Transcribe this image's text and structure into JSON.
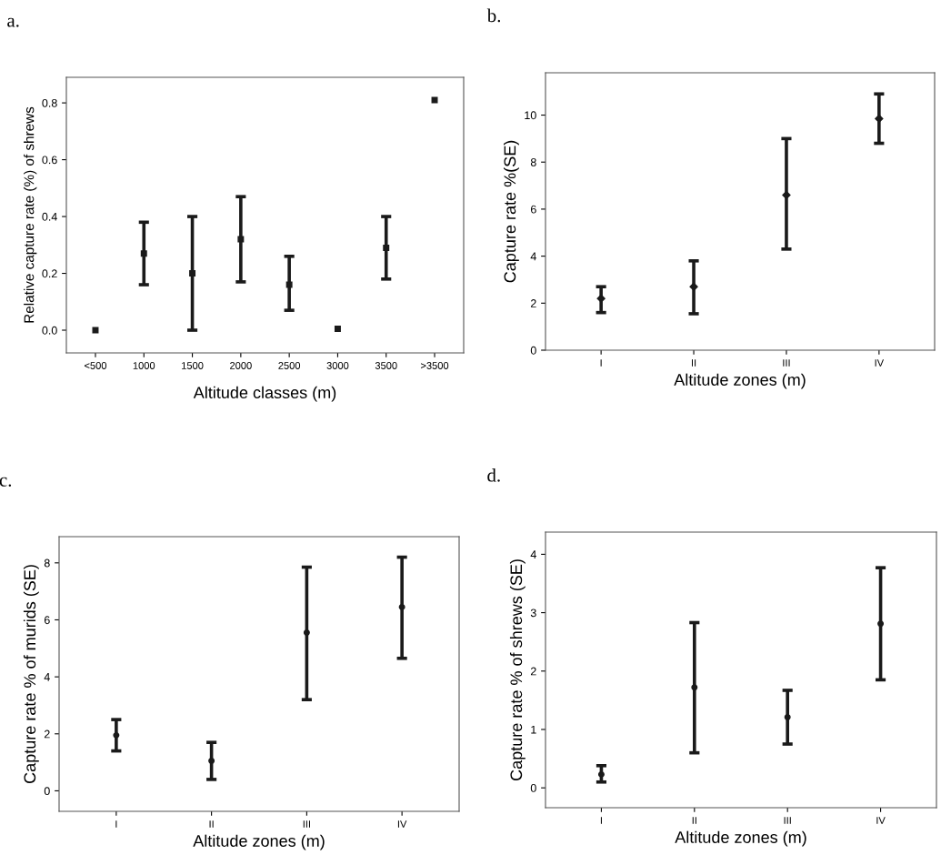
{
  "chart_data": [
    {
      "type": "scatter",
      "title": "a.",
      "xlabel": "Altitude classes (m)",
      "ylabel": "Relative capture rate (%) of shrews",
      "categories": [
        "<500",
        "1000",
        "1500",
        "2000",
        "2500",
        "3000",
        "3500",
        ">3500"
      ],
      "values": [
        0.0,
        0.27,
        0.2,
        0.32,
        0.16,
        0.005,
        0.29,
        0.81
      ],
      "errors": [
        null,
        [
          0.16,
          0.38
        ],
        [
          0.0,
          0.4
        ],
        [
          0.17,
          0.47
        ],
        [
          0.07,
          0.26
        ],
        null,
        [
          0.18,
          0.4
        ],
        null
      ],
      "color": "#1a1a1a",
      "marker": "square",
      "ylim": [
        -0.08,
        0.89
      ],
      "yticks": [
        {
          "value": 0,
          "label": "0.0"
        },
        0.2,
        0.4,
        0.6,
        0.8
      ],
      "grid": false,
      "legend": false
    },
    {
      "type": "scatter",
      "title": "b.",
      "xlabel": "Altitude zones (m)",
      "ylabel": "Capture rate %(SE)",
      "categories": [
        "I",
        "II",
        "III",
        "IV"
      ],
      "values": [
        2.2,
        2.7,
        6.6,
        9.85
      ],
      "errors": [
        [
          1.6,
          2.7
        ],
        [
          1.55,
          3.8
        ],
        [
          4.3,
          9.0
        ],
        [
          8.8,
          10.9
        ]
      ],
      "color": "#1a1a1a",
      "marker": "diamond",
      "ylim": [
        0,
        11.8
      ],
      "yticks": [
        0,
        2,
        4,
        6,
        8,
        10
      ],
      "grid": false,
      "legend": false
    },
    {
      "type": "scatter",
      "title": "c.",
      "xlabel": "Altitude zones (m)",
      "ylabel": "Capture rate % of murids (SE)",
      "categories": [
        "I",
        "II",
        "III",
        "IV"
      ],
      "values": [
        1.95,
        1.05,
        5.55,
        6.45
      ],
      "errors": [
        [
          1.4,
          2.5
        ],
        [
          0.4,
          1.7
        ],
        [
          3.2,
          7.85
        ],
        [
          4.65,
          8.2
        ]
      ],
      "color": "#1a1a1a",
      "marker": "circle",
      "ylim": [
        -0.72,
        8.92
      ],
      "yticks": [
        0,
        2,
        4,
        6,
        8
      ],
      "grid": false,
      "legend": false
    },
    {
      "type": "scatter",
      "title": "d.",
      "xlabel": "Altitude zones (m)",
      "ylabel": "Capture rate % of shrews (SE)",
      "categories": [
        "I",
        "II",
        "III",
        "IV"
      ],
      "values": [
        0.23,
        1.72,
        1.21,
        2.81
      ],
      "errors": [
        [
          0.1,
          0.38
        ],
        [
          0.6,
          2.83
        ],
        [
          0.75,
          1.67
        ],
        [
          1.85,
          3.77
        ]
      ],
      "color": "#1a1a1a",
      "marker": "circle",
      "ylim": [
        -0.34,
        4.38
      ],
      "yticks": [
        0,
        1,
        2,
        3,
        4
      ],
      "grid": false,
      "legend": false
    }
  ]
}
